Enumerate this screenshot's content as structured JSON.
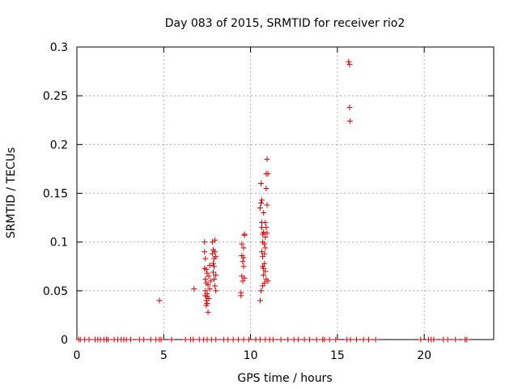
{
  "chart_data": {
    "type": "scatter",
    "title": "Day 083 of 2015, SRMTID for receiver rio2",
    "xlabel": "GPS time / hours",
    "ylabel": "SRMTID / TECUs",
    "xlim": [
      0,
      24
    ],
    "ylim": [
      0,
      0.3
    ],
    "grid": true,
    "x_ticks": [
      0,
      5,
      10,
      15,
      20
    ],
    "y_ticks": [
      0,
      0.05,
      0.1,
      0.15,
      0.2,
      0.25,
      0.3
    ],
    "x_tick_labels": [
      "0",
      "5",
      "10",
      "15",
      "20"
    ],
    "y_tick_labels": [
      "0",
      "0.05",
      "0.1",
      "0.15",
      "0.2",
      "0.25",
      "0.3"
    ],
    "marker": "+",
    "color": "#dd0000",
    "series": [
      {
        "name": "SRMTID",
        "x": [
          0.1,
          0.2,
          0.45,
          0.7,
          1.05,
          1.2,
          1.35,
          1.55,
          1.7,
          1.8,
          2.15,
          2.35,
          2.55,
          2.7,
          2.85,
          3.1,
          3.6,
          3.85,
          4.25,
          4.55,
          4.75,
          4.85,
          5.45,
          6.25,
          6.55,
          6.7,
          7.05,
          7.3,
          7.5,
          7.75,
          8.0,
          8.45,
          8.7,
          9.0,
          9.3,
          9.6,
          9.9,
          10.3,
          10.55,
          10.85,
          11.1,
          11.3,
          11.75,
          12.15,
          12.5,
          12.75,
          13.1,
          13.4,
          13.8,
          14.15,
          14.25,
          14.55,
          14.9,
          15.55,
          15.75,
          16.1,
          16.5,
          16.8,
          17.2,
          19.8,
          20.25,
          20.4,
          20.55,
          21.1,
          21.35,
          21.8,
          22.35,
          22.45,
          4.75,
          6.75,
          7.35,
          7.35,
          7.35,
          7.4,
          7.4,
          7.4,
          7.4,
          7.45,
          7.45,
          7.45,
          7.45,
          7.5,
          7.5,
          7.5,
          7.5,
          7.55,
          7.55,
          7.6,
          7.6,
          7.65,
          7.65,
          7.7,
          7.8,
          7.8,
          7.85,
          7.85,
          7.85,
          7.9,
          7.9,
          7.9,
          7.95,
          7.95,
          7.95,
          8.0,
          8.0,
          8.0,
          9.45,
          9.45,
          9.5,
          9.5,
          9.5,
          9.55,
          9.55,
          9.6,
          9.6,
          9.6,
          9.65,
          9.65,
          9.65,
          10.55,
          10.55,
          10.6,
          10.6,
          10.6,
          10.65,
          10.65,
          10.65,
          10.65,
          10.7,
          10.7,
          10.7,
          10.7,
          10.7,
          10.75,
          10.75,
          10.75,
          10.75,
          10.8,
          10.8,
          10.8,
          10.8,
          10.85,
          10.85,
          10.85,
          10.85,
          10.9,
          10.9,
          10.9,
          10.9,
          10.95,
          10.95,
          10.95,
          11.0,
          11.0,
          15.65,
          15.7,
          15.7,
          15.72
        ],
        "y": [
          0,
          0,
          0,
          0,
          0,
          0,
          0,
          0,
          0,
          0,
          0,
          0,
          0,
          0,
          0,
          0,
          0,
          0,
          0,
          0,
          0,
          0,
          0,
          0,
          0,
          0,
          0,
          0,
          0,
          0,
          0,
          0,
          0,
          0,
          0,
          0,
          0,
          0,
          0,
          0,
          0,
          0,
          0,
          0,
          0,
          0,
          0,
          0,
          0,
          0,
          0,
          0,
          0,
          0,
          0,
          0,
          0,
          0,
          0,
          0,
          0,
          0,
          0,
          0,
          0,
          0,
          0,
          0,
          0.04,
          0.052,
          0.1,
          0.09,
          0.073,
          0.083,
          0.062,
          0.05,
          0.045,
          0.072,
          0.058,
          0.04,
          0.035,
          0.068,
          0.044,
          0.037,
          0.047,
          0.028,
          0.056,
          0.065,
          0.042,
          0.076,
          0.052,
          0.06,
          0.1,
          0.088,
          0.092,
          0.078,
          0.069,
          0.083,
          0.075,
          0.062,
          0.102,
          0.09,
          0.055,
          0.085,
          0.05,
          0.066,
          0.048,
          0.045,
          0.098,
          0.086,
          0.065,
          0.08,
          0.06,
          0.094,
          0.084,
          0.075,
          0.107,
          0.108,
          0.063,
          0.04,
          0.135,
          0.16,
          0.14,
          0.05,
          0.12,
          0.143,
          0.115,
          0.09,
          0.108,
          0.1,
          0.075,
          0.085,
          0.055,
          0.13,
          0.11,
          0.073,
          0.066,
          0.098,
          0.088,
          0.078,
          0.058,
          0.12,
          0.105,
          0.094,
          0.07,
          0.17,
          0.155,
          0.115,
          0.062,
          0.185,
          0.138,
          0.109,
          0.17,
          0.06,
          0.285,
          0.282,
          0.238,
          0.224
        ]
      }
    ]
  }
}
